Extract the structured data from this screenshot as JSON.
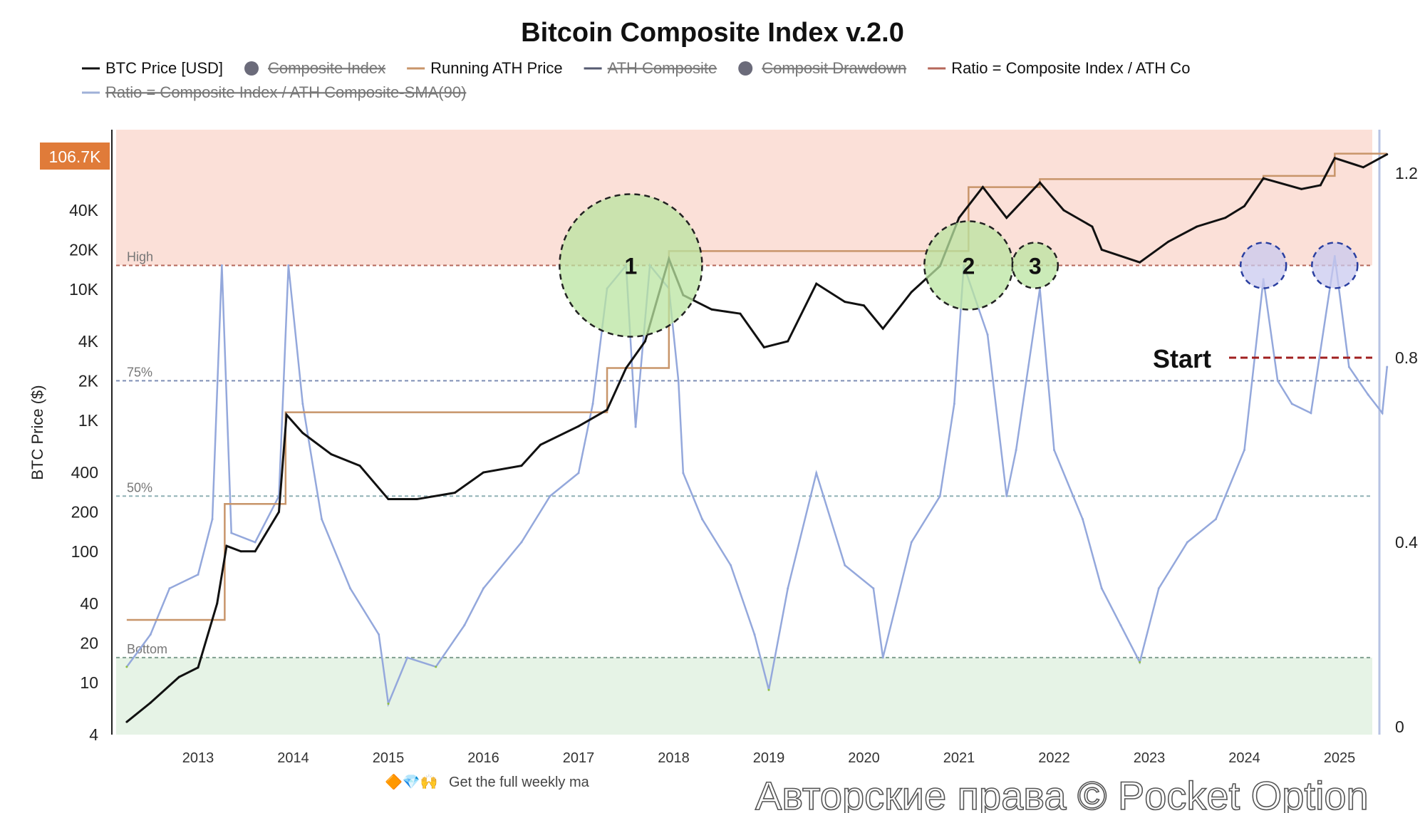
{
  "chart_data": {
    "type": "line",
    "title": "Bitcoin Composite Index v.2.0",
    "legend": [
      {
        "label": "BTC Price [USD]",
        "color": "#111111",
        "hidden": false
      },
      {
        "label": "Composite Index",
        "color": "#6b6b7a",
        "hidden": true
      },
      {
        "label": "Running ATH Price",
        "color": "#c8956a",
        "hidden": false
      },
      {
        "label": "ATH Composite",
        "color": "#555a70",
        "hidden": true
      },
      {
        "label": "Composit Drawdown",
        "color": "#6b6b7a",
        "hidden": true
      },
      {
        "label": "Ratio = Composite Index / ATH Co",
        "color": "#b5675a",
        "hidden": false
      },
      {
        "label": "Ratio = Composite Index / ATH Composite-SMA(90)",
        "color": "#9fb0d8",
        "hidden": true
      }
    ],
    "ylabel": "BTC Price ($)",
    "y_scale": "log",
    "ylim": [
      4,
      150000
    ],
    "y_ticks": [
      "4",
      "10",
      "20",
      "40",
      "100",
      "200",
      "400",
      "1K",
      "2K",
      "4K",
      "10K",
      "20K",
      "40K"
    ],
    "y_tick_values": [
      4,
      10,
      20,
      40,
      100,
      200,
      400,
      1000,
      2000,
      4000,
      10000,
      20000,
      40000
    ],
    "last_price_badge": "106.7K",
    "y2lim": [
      0,
      1.3
    ],
    "y2_ticks": [
      "0",
      "0.4",
      "0.8",
      "1.2"
    ],
    "x_ticks": [
      "2013",
      "2014",
      "2015",
      "2016",
      "2017",
      "2018",
      "2019",
      "2020",
      "2021",
      "2022",
      "2023",
      "2024",
      "2025"
    ],
    "xlim": [
      2012.2,
      2025.6
    ],
    "levels": [
      {
        "label": "High",
        "value": 1.0,
        "color": "#b5675a"
      },
      {
        "label": "75%",
        "value": 0.75,
        "color": "#7f8fb5"
      },
      {
        "label": "50%",
        "value": 0.5,
        "color": "#8fb0b5"
      },
      {
        "label": "Bottom",
        "value": 0.15,
        "color": "#7f9f8f"
      }
    ],
    "start_line": {
      "label": "Start",
      "value": 0.8,
      "color": "#a02020"
    },
    "btc_price": {
      "x": [
        2012.25,
        2012.5,
        2012.8,
        2013.0,
        2013.2,
        2013.3,
        2013.45,
        2013.6,
        2013.85,
        2013.93,
        2014.1,
        2014.4,
        2014.7,
        2015.0,
        2015.3,
        2015.7,
        2016.0,
        2016.4,
        2016.6,
        2017.0,
        2017.3,
        2017.5,
        2017.7,
        2017.95,
        2018.1,
        2018.4,
        2018.7,
        2018.95,
        2019.2,
        2019.5,
        2019.8,
        2020.0,
        2020.2,
        2020.5,
        2020.8,
        2021.0,
        2021.25,
        2021.5,
        2021.85,
        2022.1,
        2022.4,
        2022.5,
        2022.9,
        2023.2,
        2023.5,
        2023.8,
        2024.0,
        2024.2,
        2024.6,
        2024.8,
        2024.95,
        2025.25,
        2025.5
      ],
      "values": [
        5,
        7,
        11,
        13,
        40,
        110,
        100,
        100,
        200,
        1100,
        800,
        550,
        450,
        250,
        250,
        280,
        400,
        450,
        650,
        900,
        1200,
        2500,
        4000,
        17000,
        9000,
        7000,
        6500,
        3600,
        4000,
        11000,
        8000,
        7500,
        5000,
        9500,
        15000,
        35000,
        60000,
        35000,
        65000,
        40000,
        30000,
        20000,
        16000,
        23000,
        30000,
        35000,
        43000,
        70000,
        58000,
        62000,
        100000,
        85000,
        106700
      ]
    },
    "running_ath": {
      "x": [
        2012.25,
        2013.05,
        2013.28,
        2013.92,
        2017.0,
        2017.3,
        2017.95,
        2020.9,
        2021.1,
        2021.85,
        2024.2,
        2024.95,
        2025.5
      ],
      "values": [
        30,
        30,
        230,
        1150,
        1150,
        2500,
        19500,
        19500,
        60000,
        69000,
        73000,
        108000,
        108000
      ]
    },
    "ratio_sma90": {
      "x": [
        2012.25,
        2012.5,
        2012.7,
        2013.0,
        2013.15,
        2013.25,
        2013.35,
        2013.6,
        2013.85,
        2013.95,
        2014.1,
        2014.3,
        2014.6,
        2014.9,
        2015.0,
        2015.2,
        2015.5,
        2015.8,
        2016.0,
        2016.4,
        2016.7,
        2017.0,
        2017.15,
        2017.3,
        2017.5,
        2017.6,
        2017.75,
        2017.95,
        2018.05,
        2018.1,
        2018.3,
        2018.6,
        2018.85,
        2019.0,
        2019.2,
        2019.5,
        2019.8,
        2020.1,
        2020.2,
        2020.5,
        2020.8,
        2020.95,
        2021.05,
        2021.3,
        2021.5,
        2021.6,
        2021.85,
        2022.0,
        2022.3,
        2022.5,
        2022.7,
        2022.9,
        2023.1,
        2023.4,
        2023.7,
        2024.0,
        2024.2,
        2024.35,
        2024.5,
        2024.7,
        2024.95,
        2025.1,
        2025.3,
        2025.45,
        2025.5
      ],
      "values": [
        0.13,
        0.2,
        0.3,
        0.33,
        0.45,
        1.0,
        0.42,
        0.4,
        0.5,
        1.0,
        0.7,
        0.45,
        0.3,
        0.2,
        0.05,
        0.15,
        0.13,
        0.22,
        0.3,
        0.4,
        0.5,
        0.55,
        0.7,
        0.95,
        1.0,
        0.65,
        1.0,
        0.95,
        0.75,
        0.55,
        0.45,
        0.35,
        0.2,
        0.08,
        0.3,
        0.55,
        0.35,
        0.3,
        0.15,
        0.4,
        0.5,
        0.7,
        1.0,
        0.85,
        0.5,
        0.6,
        0.95,
        0.6,
        0.45,
        0.3,
        0.22,
        0.14,
        0.3,
        0.4,
        0.45,
        0.6,
        0.97,
        0.75,
        0.7,
        0.68,
        1.02,
        0.78,
        0.72,
        0.68,
        0.78
      ]
    },
    "annotations": [
      {
        "label": "1",
        "x": 2017.55,
        "y": 1.0,
        "color": "#b9e4a0"
      },
      {
        "label": "2",
        "x": 2021.1,
        "y": 1.0,
        "color": "#b9e4a0"
      },
      {
        "label": "3",
        "x": 2021.8,
        "y": 1.0,
        "color": "#b9e4a0"
      },
      {
        "label": "",
        "x": 2024.2,
        "y": 1.0,
        "color": "#c9c9ef"
      },
      {
        "label": "",
        "x": 2024.95,
        "y": 1.0,
        "color": "#c9c9ef"
      }
    ],
    "zones": {
      "high_color": "#fbe0d8",
      "bottom_color": "#e6f3e6"
    }
  },
  "footer": {
    "text": "Get the full weekly ma",
    "icons": "🔶💎🙌"
  },
  "watermark": "Авторские права © Pocket Option"
}
